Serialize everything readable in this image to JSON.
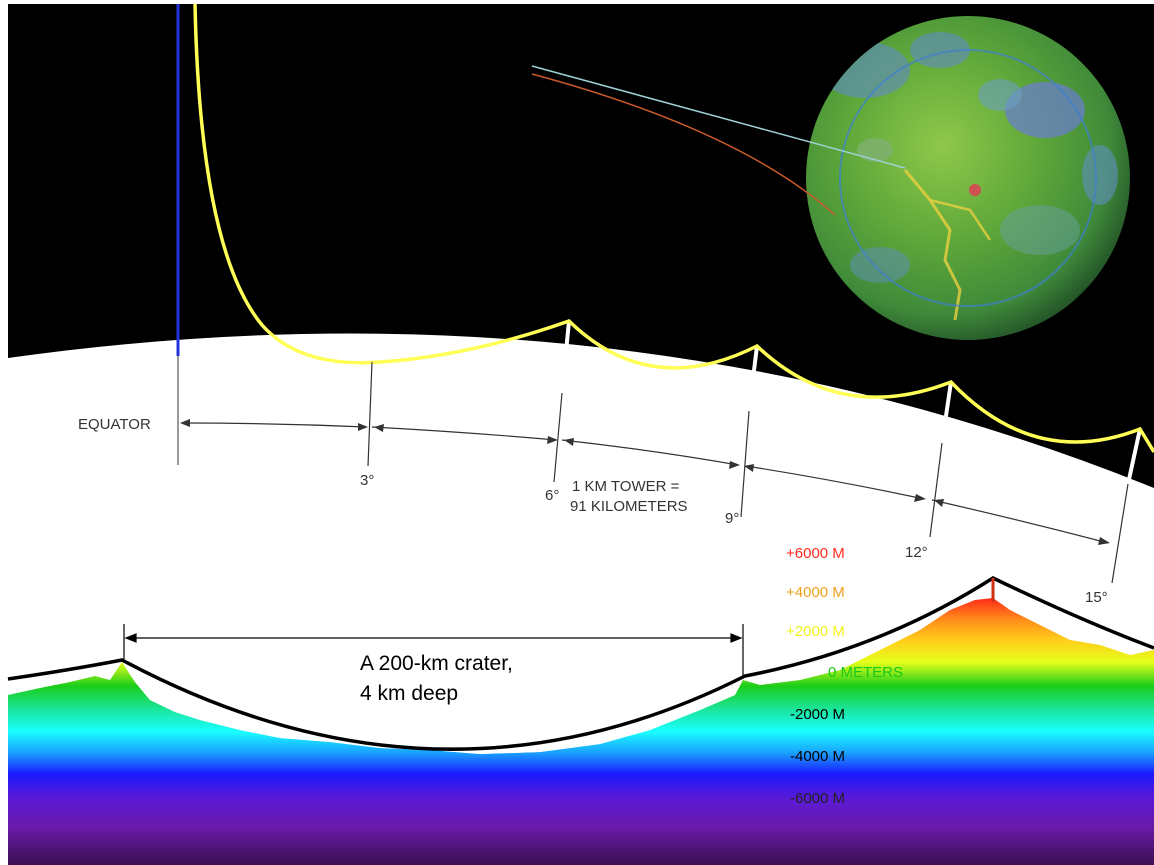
{
  "labels": {
    "equator": "EQUATOR",
    "deg3": "3°",
    "deg6": "6°",
    "deg9": "9°",
    "deg12": "12°",
    "deg15": "15°",
    "tower_line1": "1 KM TOWER =",
    "tower_line2": "91 KILOMETERS",
    "crater_line1": "A 200-km crater,",
    "crater_line2": "4 km deep"
  },
  "elevation_scale": [
    {
      "text": "+6000 M",
      "color": "#ff2a1a"
    },
    {
      "text": "+4000 M",
      "color": "#f0a21c"
    },
    {
      "text": "+2000 M",
      "color": "#f2f21a"
    },
    {
      "text": "0 METERS",
      "color": "#1ac81a"
    },
    {
      "text": "-2000 M",
      "color": "#000000"
    },
    {
      "text": "-4000 M",
      "color": "#000000"
    },
    {
      "text": "-6000 M",
      "color": "#222222"
    }
  ],
  "colors": {
    "space": "#000000",
    "cable": "#ffff55",
    "equator_line": "#2233dd",
    "moon_surface": "#ffffff"
  }
}
